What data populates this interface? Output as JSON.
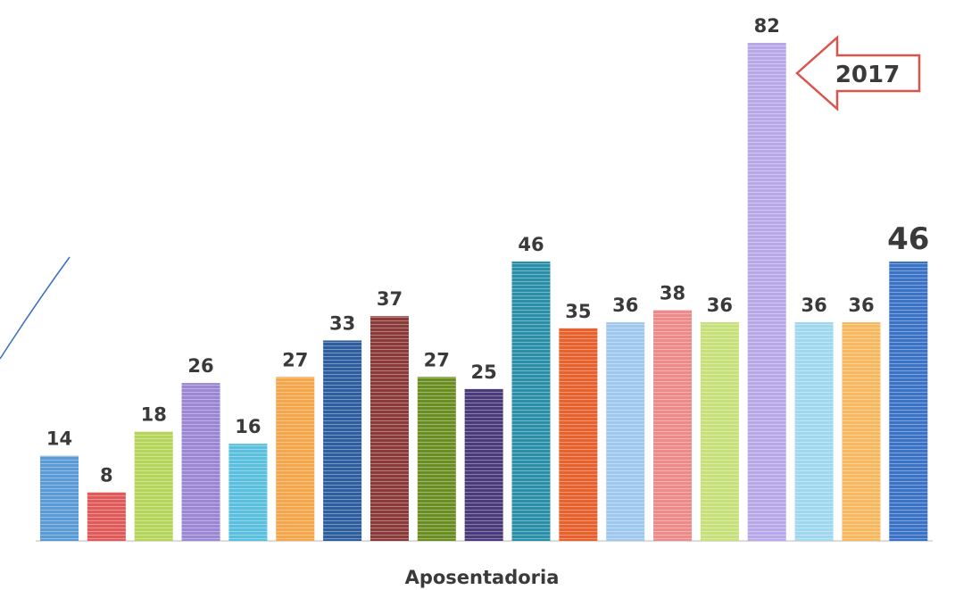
{
  "chart_data": {
    "type": "bar",
    "x_label": "Aposentadoria",
    "annotation": "2017",
    "categories": [
      null,
      null,
      null,
      null,
      null,
      null,
      null,
      null,
      null,
      null,
      null,
      null,
      null,
      null,
      null,
      null,
      null,
      null,
      null
    ],
    "values": [
      14,
      8,
      18,
      26,
      16,
      27,
      33,
      37,
      27,
      25,
      46,
      35,
      36,
      38,
      36,
      82,
      36,
      36,
      46
    ],
    "colors": [
      "#5b9bd5",
      "#e05a5a",
      "#b5d55a",
      "#9b87d4",
      "#5bc0de",
      "#f5a54a",
      "#2e5e9e",
      "#8b3a3a",
      "#6b8e23",
      "#4b3b7a",
      "#2a8fa8",
      "#e8602c",
      "#9fc8ee",
      "#ee8a8a",
      "#c6e07a",
      "#b8a8e8",
      "#9fd8ee",
      "#f8b860",
      "#3a72c4"
    ]
  }
}
